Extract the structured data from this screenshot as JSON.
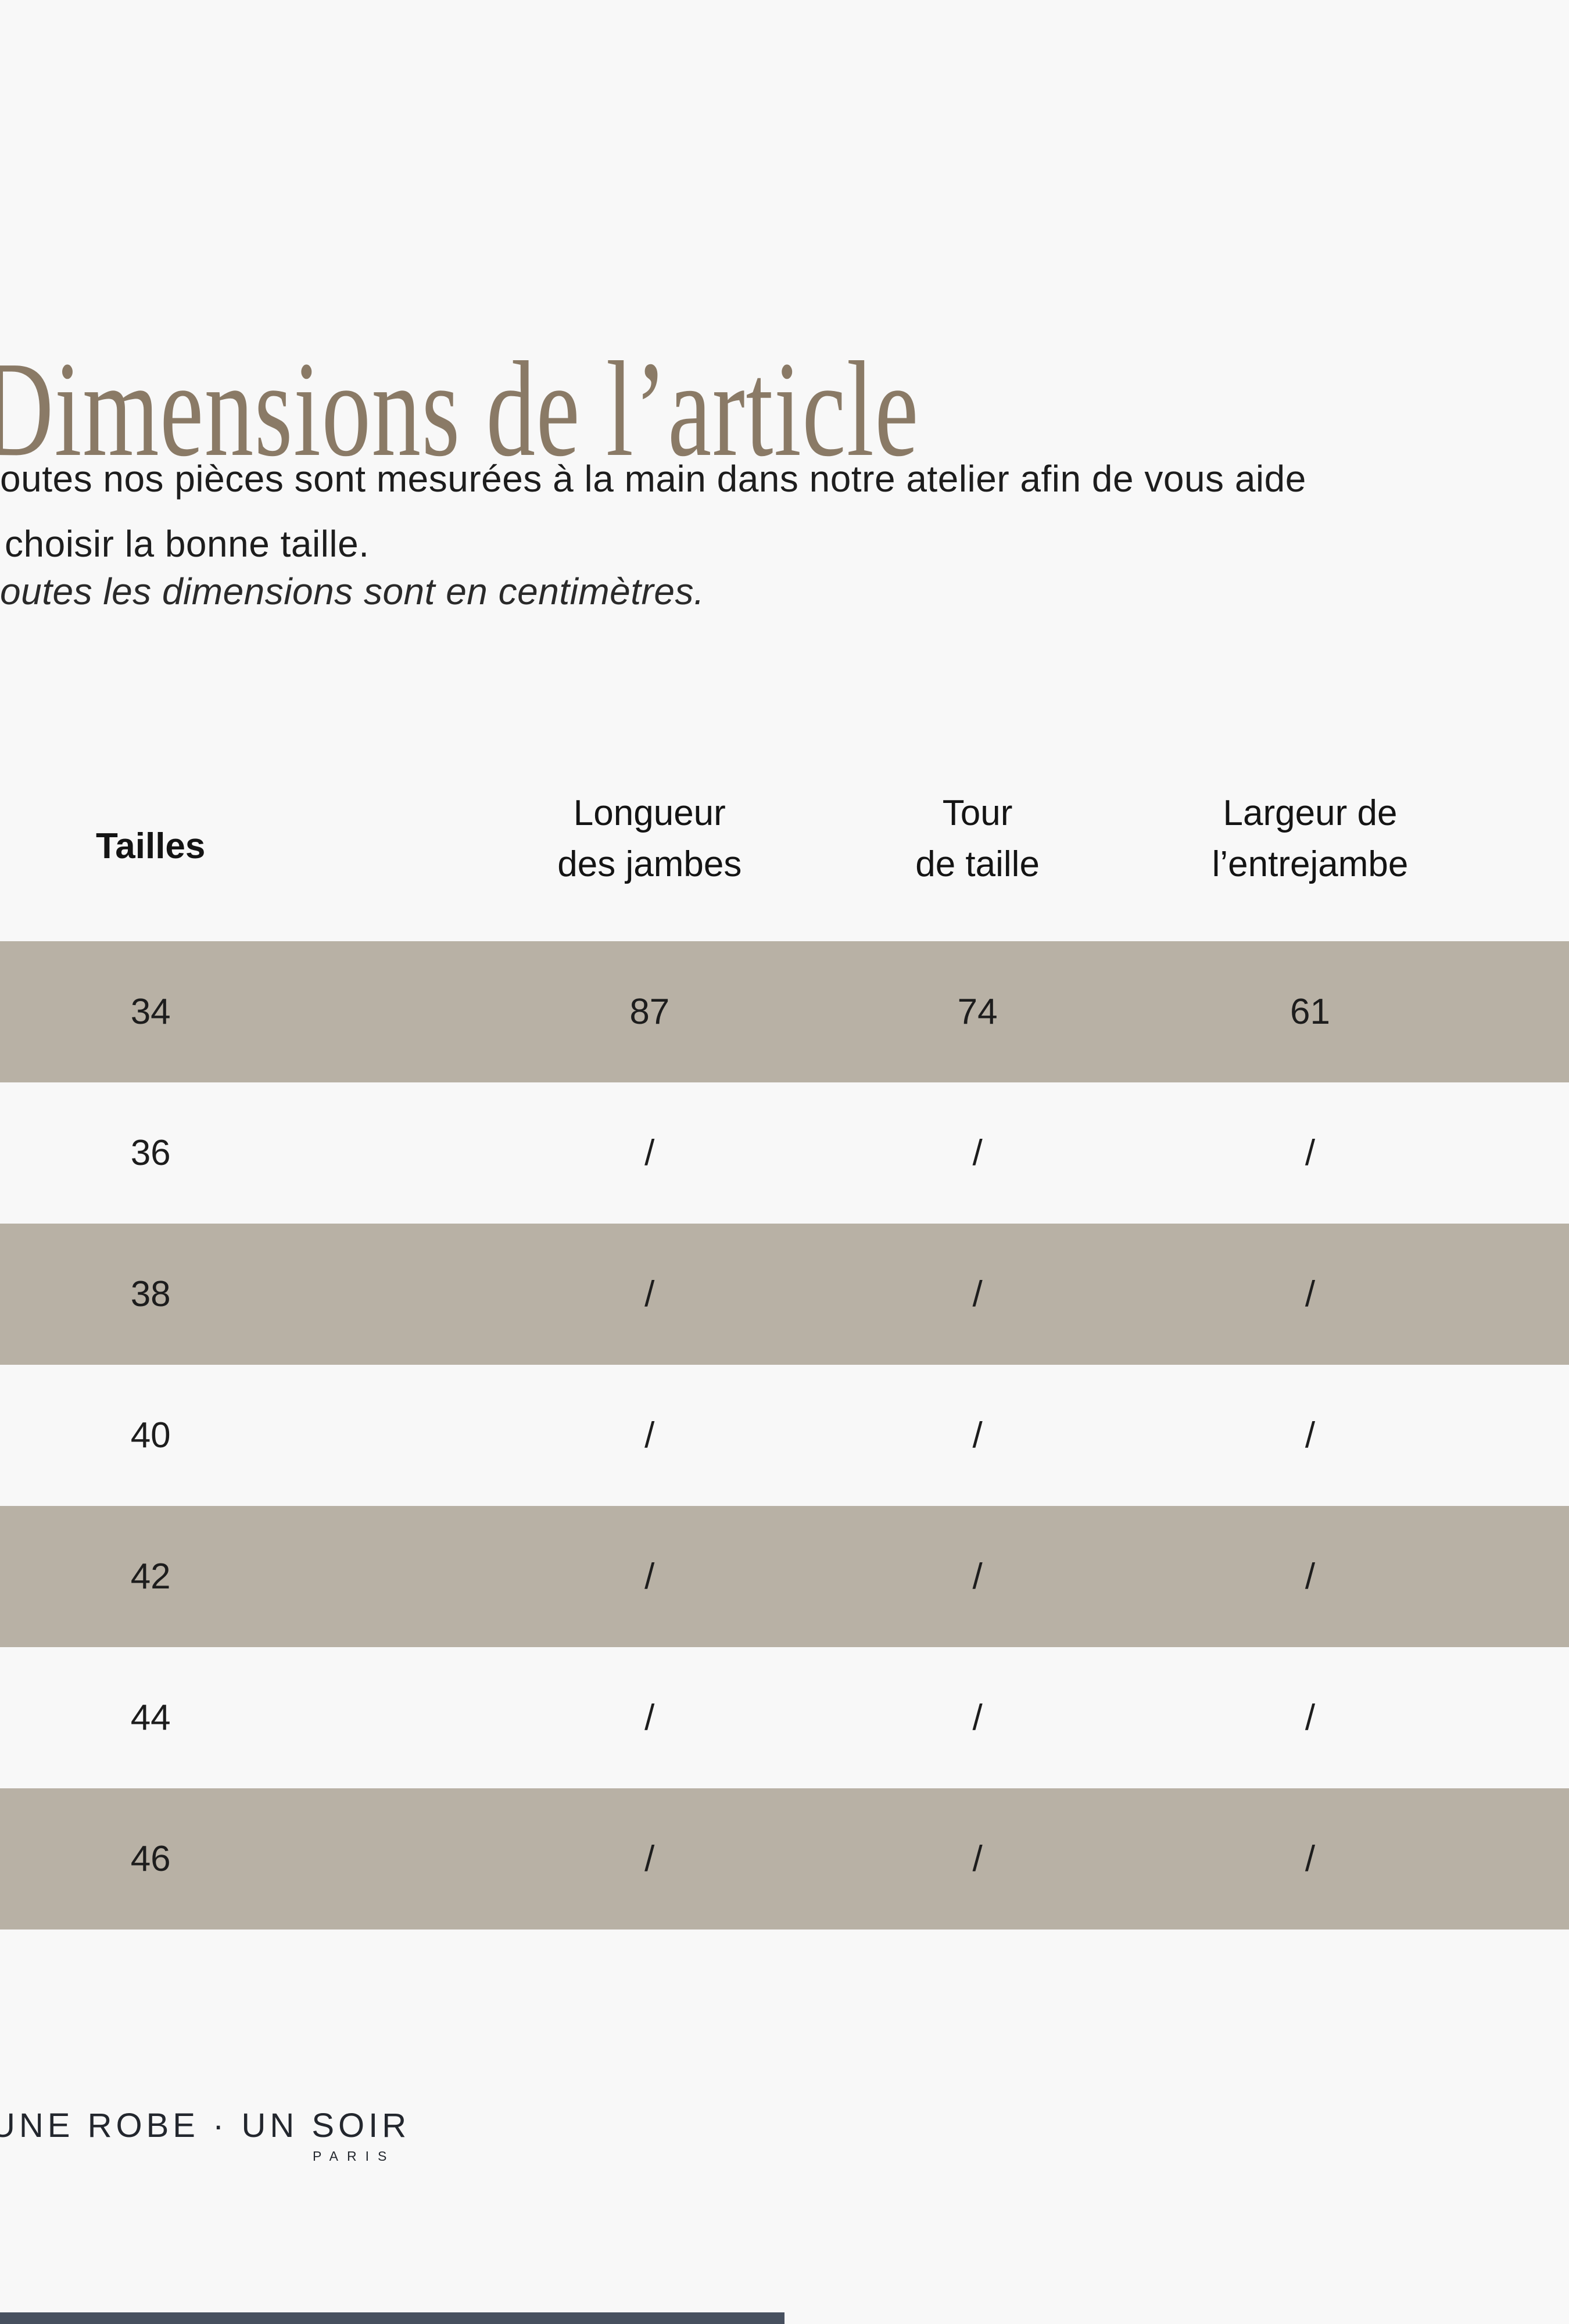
{
  "page": {
    "background_color": "#f8f8f8",
    "highlight_color": "#b8b1a5",
    "accent_text_color": "#8a7a66",
    "bottom_bar_color": "#47505f"
  },
  "header": {
    "title": "Dimensions de l’article"
  },
  "intro": {
    "line1": "outes nos pièces sont mesurées à la main dans notre atelier afin de vous aide",
    "line2": "choisir la bonne taille.",
    "note": "outes les dimensions sont en centimètres."
  },
  "size_table": {
    "columns": [
      {
        "label_line1": "Tailles",
        "label_line2": ""
      },
      {
        "label_line1": "Longueur",
        "label_line2": "des jambes"
      },
      {
        "label_line1": "Tour",
        "label_line2": "de taille"
      },
      {
        "label_line1": "Largeur de",
        "label_line2": "l’entrejambe"
      }
    ],
    "rows": [
      {
        "size": "34",
        "values": [
          "87",
          "74",
          "61"
        ],
        "highlighted": true
      },
      {
        "size": "36",
        "values": [
          "/",
          "/",
          "/"
        ],
        "highlighted": false
      },
      {
        "size": "38",
        "values": [
          "/",
          "/",
          "/"
        ],
        "highlighted": true
      },
      {
        "size": "40",
        "values": [
          "/",
          "/",
          "/"
        ],
        "highlighted": false
      },
      {
        "size": "42",
        "values": [
          "/",
          "/",
          "/"
        ],
        "highlighted": true
      },
      {
        "size": "44",
        "values": [
          "/",
          "/",
          "/"
        ],
        "highlighted": false
      },
      {
        "size": "46",
        "values": [
          "/",
          "/",
          "/"
        ],
        "highlighted": true
      }
    ]
  },
  "footer": {
    "brand": "UNE ROBE · UN SOIR",
    "brand_sub": "PARIS"
  }
}
